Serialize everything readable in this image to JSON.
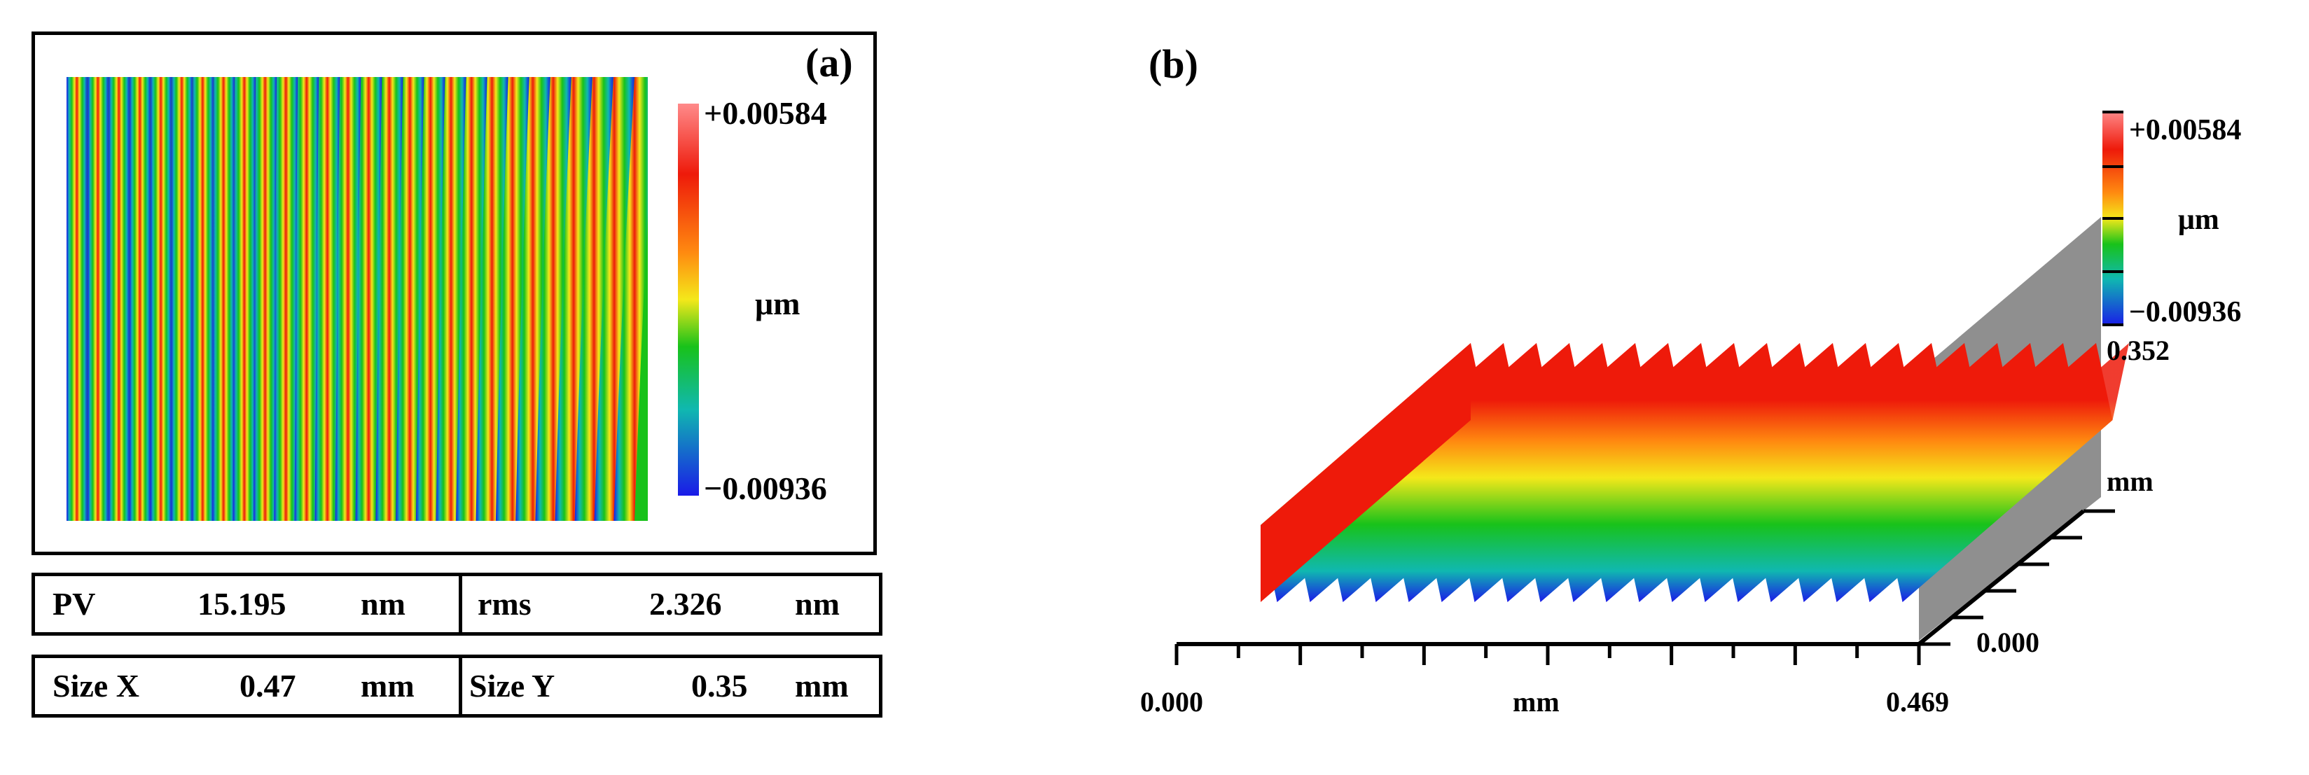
{
  "panel_a": {
    "label": "(a)",
    "colorbar": {
      "max": "+0.00584",
      "min": "−0.00936",
      "unit": "μm"
    },
    "stats": [
      {
        "name": "PV",
        "value": "15.195",
        "unit": "nm",
        "name2": "rms",
        "value2": "2.326",
        "unit2": "nm"
      },
      {
        "name": "Size X",
        "value": "0.47",
        "unit": "mm",
        "name2": "Size Y",
        "value2": "0.35",
        "unit2": "mm"
      }
    ],
    "fringe_count": 28
  },
  "panel_b": {
    "label": "(b)",
    "colorbar": {
      "max": "+0.00584",
      "min": "−0.00936",
      "unit": "μm"
    },
    "x_axis": {
      "min": "0.000",
      "max": "0.469",
      "unit": "mm"
    },
    "y_axis": {
      "min": "0.000",
      "max": "0.352",
      "unit": "mm"
    },
    "ridge_count": 20
  },
  "colors": {
    "red": "#ee1a0a",
    "orange": "#ff8a10",
    "yellow": "#f4e81a",
    "green": "#18c21a",
    "cyan": "#10b8b0",
    "blue": "#1a1ae8",
    "pink": "#ff8a8a",
    "gray": "#8f8f8f"
  }
}
